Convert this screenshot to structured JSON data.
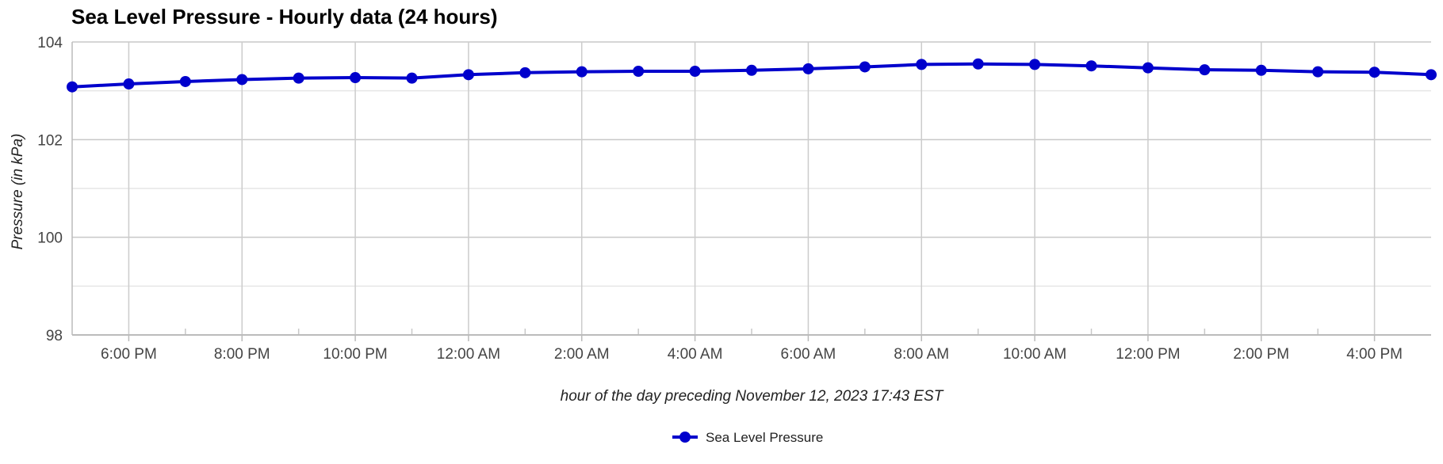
{
  "chart_data": {
    "type": "line",
    "title": "Sea Level Pressure - Hourly data (24 hours)",
    "xlabel": "hour of the day preceding November 12, 2023 17:43 EST",
    "ylabel": "Pressure (in kPa)",
    "ylim": [
      98,
      104
    ],
    "yticks": [
      "98",
      "100",
      "102",
      "104"
    ],
    "x": [
      "5:00 PM",
      "6:00 PM",
      "7:00 PM",
      "8:00 PM",
      "9:00 PM",
      "10:00 PM",
      "11:00 PM",
      "12:00 AM",
      "1:00 AM",
      "2:00 AM",
      "3:00 AM",
      "4:00 AM",
      "5:00 AM",
      "6:00 AM",
      "7:00 AM",
      "8:00 AM",
      "9:00 AM",
      "10:00 AM",
      "11:00 AM",
      "12:00 PM",
      "1:00 PM",
      "2:00 PM",
      "3:00 PM",
      "4:00 PM",
      "5:00 PM"
    ],
    "xtick_labels": [
      "6:00 PM",
      "8:00 PM",
      "10:00 PM",
      "12:00 AM",
      "2:00 AM",
      "4:00 AM",
      "6:00 AM",
      "8:00 AM",
      "10:00 AM",
      "12:00 PM",
      "2:00 PM",
      "4:00 PM"
    ],
    "grid": true,
    "legend_position": "bottom",
    "series": [
      {
        "name": "Sea Level Pressure",
        "color": "#0000cc",
        "values": [
          103.08,
          103.14,
          103.19,
          103.23,
          103.26,
          103.27,
          103.26,
          103.33,
          103.37,
          103.39,
          103.4,
          103.4,
          103.42,
          103.45,
          103.49,
          103.54,
          103.55,
          103.54,
          103.51,
          103.47,
          103.43,
          103.42,
          103.39,
          103.38,
          103.33
        ]
      }
    ]
  }
}
